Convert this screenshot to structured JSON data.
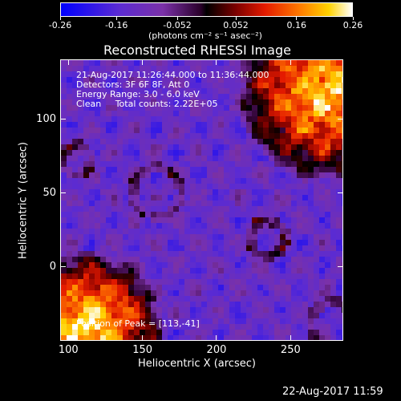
{
  "chart_data": {
    "type": "heatmap",
    "title": "Reconstructed RHESSI Image",
    "xlabel": "Heliocentric X (arcsec)",
    "ylabel": "Heliocentric Y (arcsec)",
    "xlim": [
      95,
      285
    ],
    "ylim": [
      -50,
      140
    ],
    "x_ticks": [
      "100",
      "150",
      "200",
      "250"
    ],
    "y_ticks": [
      "0",
      "50",
      "100"
    ],
    "colorbar": {
      "ticks": [
        "-0.26",
        "-0.16",
        "-0.052",
        "0.052",
        "0.16",
        "0.26"
      ],
      "range": [
        -0.26,
        0.26
      ],
      "units": "(photons cm⁻² s⁻¹ asec⁻²)"
    },
    "annotations": [
      "21-Aug-2017 11:26:44.000 to 11:36:44.000",
      "Detectors: 3F 6F 8F, Att 0",
      "Energy Range: 3.0 - 6.0 keV",
      "Clean     Total counts: 2.22E+05"
    ],
    "peak_label": "Position of Peak = [113,-41]",
    "peak": [
      113,
      -41
    ],
    "sources": [
      {
        "x": 113,
        "y": -41,
        "intensity": 0.26
      },
      {
        "x": 275,
        "y": 120,
        "intensity": 0.24
      }
    ],
    "footer": "22-Aug-2017 11:59"
  }
}
